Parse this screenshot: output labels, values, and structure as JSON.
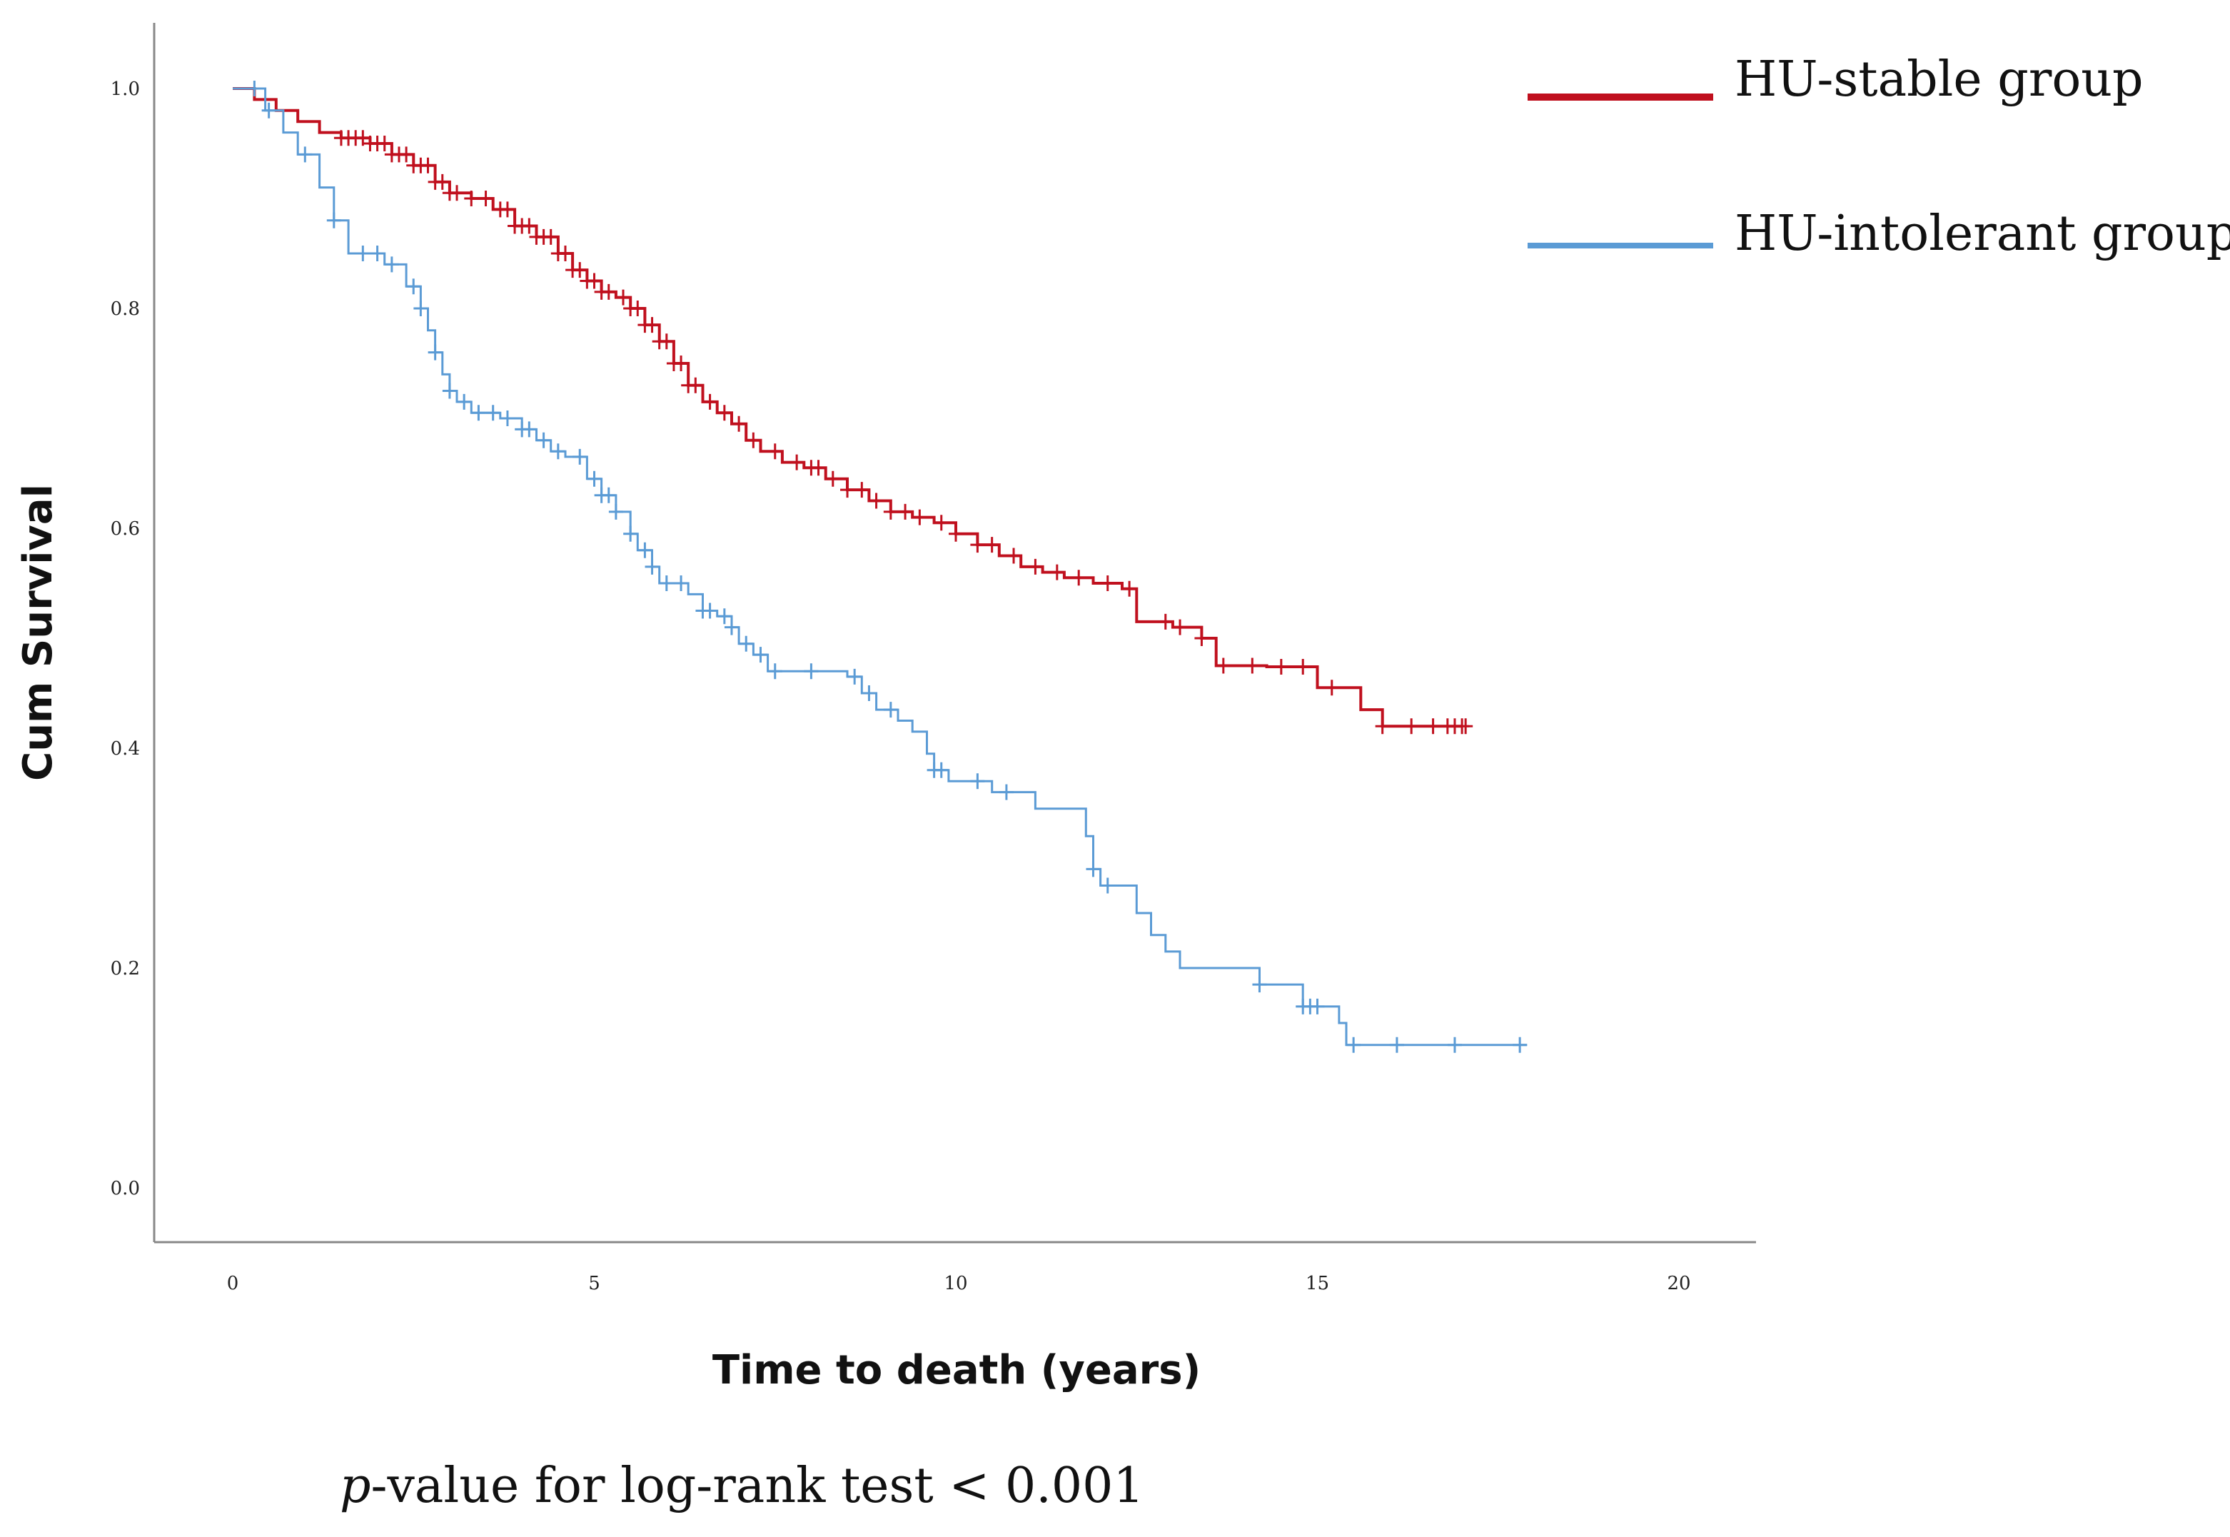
{
  "chart_data": {
    "type": "line",
    "title": "",
    "xlabel": "Time to death (years)",
    "ylabel": "Cum Survival",
    "xlim": [
      0,
      20
    ],
    "ylim": [
      0,
      1.0
    ],
    "x_ticks": [
      0,
      5,
      10,
      15,
      20
    ],
    "y_ticks": [
      0.0,
      0.2,
      0.4,
      0.6,
      0.8,
      1.0
    ],
    "x_tick_labels": [
      "0",
      "5",
      "10",
      "15",
      "20"
    ],
    "y_tick_labels": [
      "0.0",
      "0.2",
      "0.4",
      "0.6",
      "0.8",
      "1.0"
    ],
    "grid": false,
    "legend_position": "top-right",
    "series": [
      {
        "name": "HU-stable group",
        "color": "#c0101e",
        "steps": [
          [
            0,
            1.0
          ],
          [
            0.3,
            0.99
          ],
          [
            0.6,
            0.98
          ],
          [
            0.9,
            0.97
          ],
          [
            1.2,
            0.96
          ],
          [
            1.5,
            0.955
          ],
          [
            1.9,
            0.95
          ],
          [
            2.2,
            0.94
          ],
          [
            2.5,
            0.93
          ],
          [
            2.8,
            0.915
          ],
          [
            3.0,
            0.905
          ],
          [
            3.3,
            0.9
          ],
          [
            3.6,
            0.89
          ],
          [
            3.9,
            0.875
          ],
          [
            4.2,
            0.865
          ],
          [
            4.5,
            0.85
          ],
          [
            4.7,
            0.835
          ],
          [
            4.9,
            0.825
          ],
          [
            5.1,
            0.815
          ],
          [
            5.3,
            0.81
          ],
          [
            5.5,
            0.8
          ],
          [
            5.7,
            0.785
          ],
          [
            5.9,
            0.77
          ],
          [
            6.1,
            0.75
          ],
          [
            6.3,
            0.73
          ],
          [
            6.5,
            0.715
          ],
          [
            6.7,
            0.705
          ],
          [
            6.9,
            0.695
          ],
          [
            7.1,
            0.68
          ],
          [
            7.3,
            0.67
          ],
          [
            7.6,
            0.66
          ],
          [
            7.9,
            0.655
          ],
          [
            8.2,
            0.645
          ],
          [
            8.5,
            0.635
          ],
          [
            8.8,
            0.625
          ],
          [
            9.1,
            0.615
          ],
          [
            9.4,
            0.61
          ],
          [
            9.7,
            0.605
          ],
          [
            10.0,
            0.595
          ],
          [
            10.3,
            0.585
          ],
          [
            10.6,
            0.575
          ],
          [
            10.9,
            0.565
          ],
          [
            11.2,
            0.56
          ],
          [
            11.5,
            0.555
          ],
          [
            11.9,
            0.55
          ],
          [
            12.3,
            0.545
          ],
          [
            12.5,
            0.515
          ],
          [
            13.0,
            0.51
          ],
          [
            13.4,
            0.5
          ],
          [
            13.6,
            0.475
          ],
          [
            14.3,
            0.474
          ],
          [
            15.0,
            0.455
          ],
          [
            15.6,
            0.435
          ],
          [
            15.9,
            0.42
          ],
          [
            17.0,
            0.42
          ]
        ],
        "censor_x": [
          1.5,
          1.6,
          1.7,
          1.8,
          1.9,
          2.0,
          2.1,
          2.2,
          2.3,
          2.4,
          2.5,
          2.6,
          2.7,
          2.8,
          2.9,
          3.0,
          3.1,
          3.3,
          3.5,
          3.7,
          3.8,
          3.9,
          4.0,
          4.1,
          4.2,
          4.3,
          4.4,
          4.5,
          4.6,
          4.7,
          4.8,
          4.9,
          5.0,
          5.1,
          5.2,
          5.4,
          5.5,
          5.6,
          5.7,
          5.8,
          5.9,
          6.0,
          6.1,
          6.2,
          6.3,
          6.4,
          6.6,
          6.8,
          7.0,
          7.2,
          7.5,
          7.8,
          8.0,
          8.1,
          8.3,
          8.5,
          8.7,
          8.9,
          9.1,
          9.3,
          9.5,
          9.8,
          10.0,
          10.3,
          10.5,
          10.8,
          11.1,
          11.4,
          11.7,
          12.1,
          12.4,
          12.9,
          13.1,
          13.4,
          13.7,
          14.1,
          14.5,
          14.8,
          15.2,
          15.9,
          16.3,
          16.6,
          16.8,
          16.9,
          17.0,
          17.05
        ]
      },
      {
        "name": "HU-intolerant group",
        "color": "#5b9bd5",
        "steps": [
          [
            0,
            1.0
          ],
          [
            0.45,
            0.98
          ],
          [
            0.7,
            0.96
          ],
          [
            0.9,
            0.94
          ],
          [
            1.2,
            0.91
          ],
          [
            1.4,
            0.88
          ],
          [
            1.6,
            0.85
          ],
          [
            2.1,
            0.84
          ],
          [
            2.4,
            0.82
          ],
          [
            2.6,
            0.8
          ],
          [
            2.7,
            0.78
          ],
          [
            2.8,
            0.76
          ],
          [
            2.9,
            0.74
          ],
          [
            3.0,
            0.725
          ],
          [
            3.1,
            0.715
          ],
          [
            3.3,
            0.705
          ],
          [
            3.7,
            0.7
          ],
          [
            4.0,
            0.69
          ],
          [
            4.2,
            0.68
          ],
          [
            4.4,
            0.67
          ],
          [
            4.6,
            0.665
          ],
          [
            4.9,
            0.645
          ],
          [
            5.1,
            0.63
          ],
          [
            5.3,
            0.615
          ],
          [
            5.5,
            0.595
          ],
          [
            5.6,
            0.58
          ],
          [
            5.8,
            0.565
          ],
          [
            5.9,
            0.55
          ],
          [
            6.3,
            0.54
          ],
          [
            6.5,
            0.525
          ],
          [
            6.7,
            0.52
          ],
          [
            6.9,
            0.51
          ],
          [
            7.0,
            0.495
          ],
          [
            7.2,
            0.485
          ],
          [
            7.4,
            0.47
          ],
          [
            8.5,
            0.465
          ],
          [
            8.7,
            0.45
          ],
          [
            8.9,
            0.435
          ],
          [
            9.2,
            0.425
          ],
          [
            9.4,
            0.415
          ],
          [
            9.6,
            0.395
          ],
          [
            9.7,
            0.38
          ],
          [
            9.9,
            0.37
          ],
          [
            10.5,
            0.36
          ],
          [
            11.1,
            0.345
          ],
          [
            11.8,
            0.32
          ],
          [
            11.9,
            0.29
          ],
          [
            12.0,
            0.275
          ],
          [
            12.5,
            0.25
          ],
          [
            12.7,
            0.23
          ],
          [
            12.9,
            0.215
          ],
          [
            13.1,
            0.2
          ],
          [
            14.2,
            0.185
          ],
          [
            14.8,
            0.165
          ],
          [
            15.3,
            0.15
          ],
          [
            15.4,
            0.13
          ],
          [
            17.9,
            0.13
          ]
        ],
        "censor_x": [
          0.3,
          0.5,
          1.0,
          1.4,
          1.8,
          2.0,
          2.2,
          2.5,
          2.6,
          2.8,
          3.0,
          3.2,
          3.4,
          3.6,
          3.8,
          4.0,
          4.1,
          4.3,
          4.5,
          4.8,
          5.0,
          5.1,
          5.2,
          5.3,
          5.5,
          5.7,
          5.8,
          6.0,
          6.2,
          6.5,
          6.6,
          6.8,
          6.9,
          7.1,
          7.3,
          7.5,
          8.0,
          8.6,
          8.8,
          9.1,
          9.7,
          9.8,
          10.3,
          10.7,
          11.9,
          12.1,
          14.2,
          14.8,
          14.9,
          15.0,
          15.5,
          16.1,
          16.9,
          17.8
        ]
      }
    ],
    "annotation": {
      "italic_part": "p",
      "rest": "-value for log-rank test < 0.001"
    }
  }
}
